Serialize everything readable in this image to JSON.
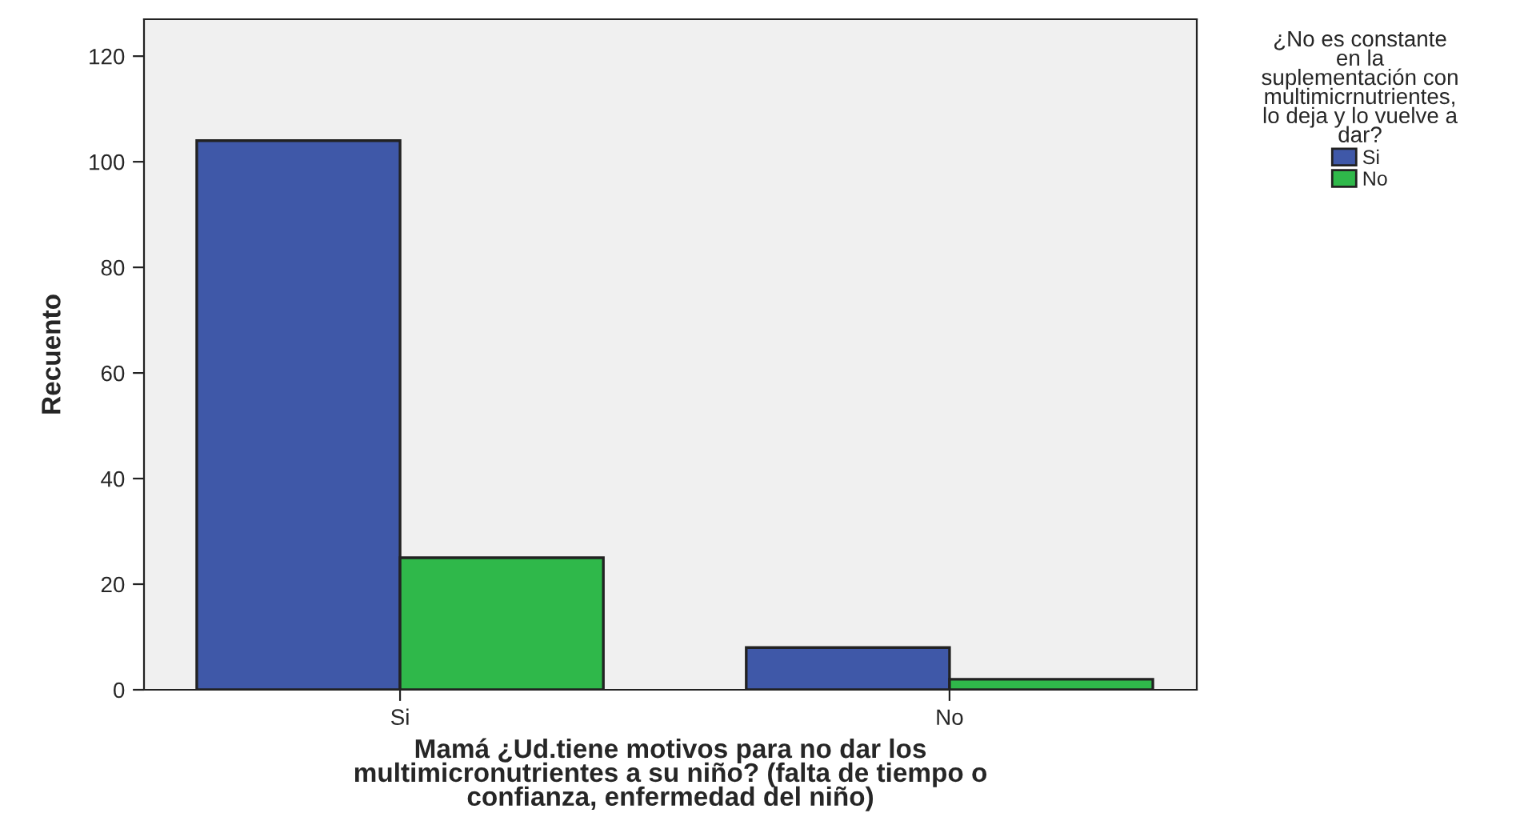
{
  "chart_data": {
    "type": "bar",
    "xlabel": "Mamá ¿Ud.tiene motivos para no dar los\nmultimicronutrientes a su niño? (falta de tiempo o\nconfianza, enfermedad del niño)",
    "ylabel": "Recuento",
    "legend_title": "¿No es constante\nen la\nsuplementación con\nmultimicrnutrientes,\nlo deja y lo vuelve a\ndar?",
    "categories": [
      "Si",
      "No"
    ],
    "series": [
      {
        "name": "Si",
        "color": "#3f58a8",
        "values": [
          104,
          8
        ]
      },
      {
        "name": "No",
        "color": "#2fb84a",
        "values": [
          25,
          2
        ]
      }
    ],
    "ylim": [
      0,
      127
    ],
    "yticks": [
      0,
      20,
      40,
      60,
      80,
      100,
      120
    ],
    "grid": false,
    "legend": "top right"
  }
}
